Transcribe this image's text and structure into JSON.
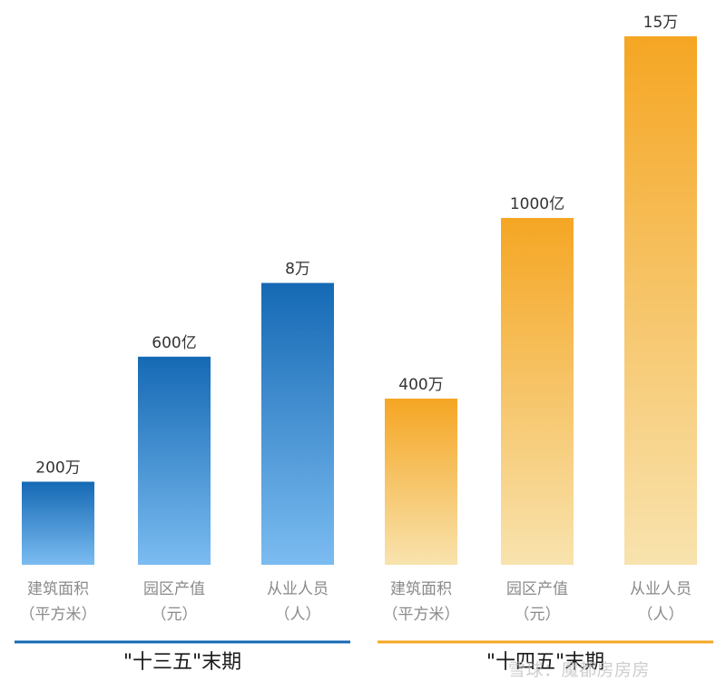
{
  "chart_data": {
    "type": "bar",
    "groups": [
      {
        "title": "\"十三五\"末期",
        "color_top": "#1569b4",
        "color_bottom": "#7bbcf1",
        "underline_color": "#1569b4",
        "bars": [
          {
            "category": [
              "建筑面积",
              "（平方米）"
            ],
            "value": 2000000,
            "label": "200万"
          },
          {
            "category": [
              "园区产值",
              "（元）"
            ],
            "value": 600,
            "label": "600亿"
          },
          {
            "category": [
              "从业人员",
              "（人）"
            ],
            "value": 80000,
            "label": "8万"
          }
        ]
      },
      {
        "title": "\"十四五\"末期",
        "color_top": "#f5a623",
        "color_bottom": "#f8e3ae",
        "underline_color": "#f5a623",
        "bars": [
          {
            "category": [
              "建筑面积",
              "（平方米）"
            ],
            "value": 4000000,
            "label": "400万"
          },
          {
            "category": [
              "园区产值",
              "（元）"
            ],
            "value": 1000,
            "label": "1000亿"
          },
          {
            "category": [
              "从业人员",
              "（人）"
            ],
            "value": 150000,
            "label": "15万"
          }
        ]
      }
    ]
  },
  "watermark": "雪球：魔都房房房"
}
